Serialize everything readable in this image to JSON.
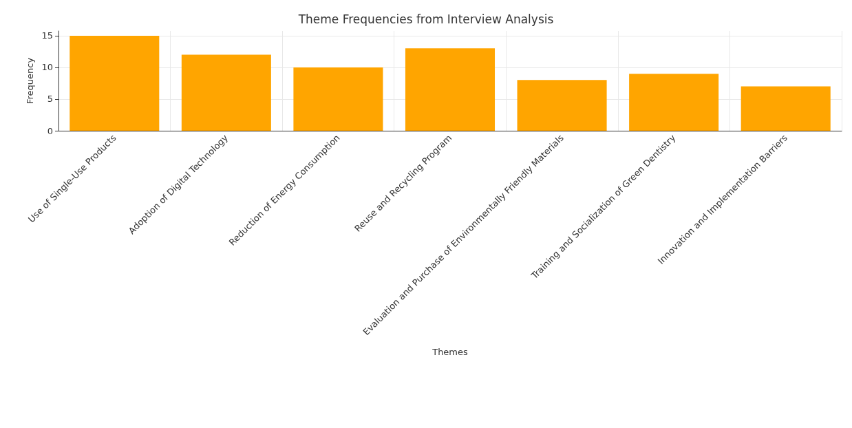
{
  "chart_data": {
    "type": "bar",
    "title": "Theme Frequencies from Interview Analysis",
    "xlabel": "Themes",
    "ylabel": "Frequency",
    "categories": [
      "Use of Single-Use Products",
      "Adoption of Digital Technology",
      "Reduction of Energy Consumption",
      "Reuse and Recycling Program",
      "Evaluation and Purchase of Environmentally Friendly Materials",
      "Training and Socialization of Green Dentistry",
      "Innovation and Implementation Barriers"
    ],
    "values": [
      15,
      12,
      10,
      13,
      8,
      9,
      7
    ],
    "color": "#ffa500",
    "ylim": [
      0,
      15.75
    ],
    "yticks": [
      0,
      5,
      10,
      15
    ],
    "grid": true
  }
}
